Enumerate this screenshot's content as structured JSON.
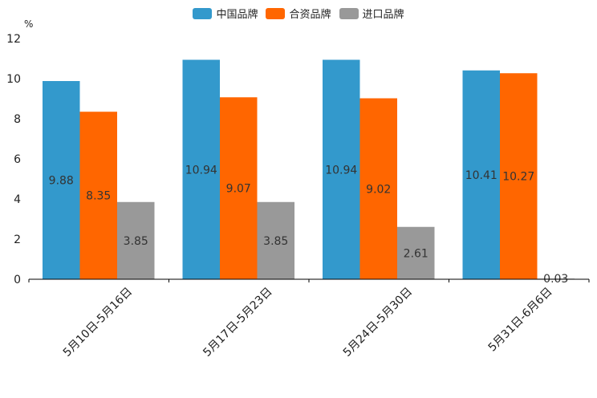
{
  "chart_data": {
    "type": "bar",
    "unit": "%",
    "categories": [
      "5月10日-5月16日",
      "5月17日-5月23日",
      "5月24日-5月30日",
      "5月31日-6月6日"
    ],
    "series": [
      {
        "name": "中国品牌",
        "color": "#3399cc",
        "values": [
          9.88,
          10.94,
          10.94,
          10.41
        ],
        "labels": [
          "9.88",
          "10.94",
          "10.94",
          "10.41"
        ]
      },
      {
        "name": "合资品牌",
        "color": "#ff6600",
        "values": [
          8.35,
          9.07,
          9.02,
          10.27
        ],
        "labels": [
          "8.35",
          "9.07",
          "9.02",
          "10.27"
        ]
      },
      {
        "name": "进口品牌",
        "color": "#999999",
        "values": [
          3.85,
          3.85,
          2.61,
          0.03
        ],
        "labels": [
          "3.85",
          "3.85",
          "2.61",
          "0.03"
        ]
      }
    ],
    "yticks": [
      "0",
      "2",
      "4",
      "6",
      "8",
      "10",
      "12"
    ],
    "ylim": [
      0,
      12
    ],
    "legend_position": "top-center"
  }
}
